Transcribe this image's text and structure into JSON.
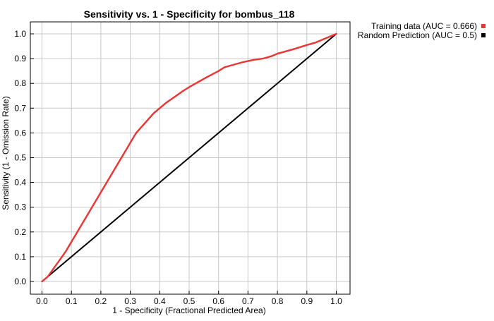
{
  "chart_data": {
    "type": "line",
    "title": "Sensitivity vs. 1 - Specificity for bombus_118",
    "xlabel": "1 - Specificity  (Fractional Predicted Area)",
    "ylabel": "Sensitivity  (1 - Omission Rate)",
    "xlim": [
      0.0,
      1.0
    ],
    "ylim": [
      0.0,
      1.0
    ],
    "x_ticks": [
      "0.0",
      "0.1",
      "0.2",
      "0.3",
      "0.4",
      "0.5",
      "0.6",
      "0.7",
      "0.8",
      "0.9",
      "1.0"
    ],
    "y_ticks": [
      "0.0",
      "0.1",
      "0.2",
      "0.3",
      "0.4",
      "0.5",
      "0.6",
      "0.7",
      "0.8",
      "0.9",
      "1.0"
    ],
    "grid": true,
    "legend_position": "right",
    "series": [
      {
        "name": "Training data (AUC = 0.666)",
        "color": "#ee3333",
        "x": [
          0.0,
          0.02,
          0.05,
          0.08,
          0.1,
          0.12,
          0.15,
          0.18,
          0.2,
          0.22,
          0.25,
          0.28,
          0.3,
          0.32,
          0.35,
          0.38,
          0.4,
          0.42,
          0.45,
          0.48,
          0.5,
          0.53,
          0.56,
          0.6,
          0.62,
          0.65,
          0.68,
          0.7,
          0.72,
          0.75,
          0.78,
          0.8,
          0.83,
          0.86,
          0.9,
          0.93,
          0.96,
          1.0
        ],
        "y": [
          0.0,
          0.02,
          0.07,
          0.12,
          0.16,
          0.2,
          0.26,
          0.32,
          0.36,
          0.4,
          0.46,
          0.52,
          0.56,
          0.6,
          0.64,
          0.68,
          0.7,
          0.72,
          0.745,
          0.77,
          0.785,
          0.805,
          0.825,
          0.85,
          0.865,
          0.875,
          0.885,
          0.89,
          0.895,
          0.9,
          0.91,
          0.92,
          0.93,
          0.94,
          0.955,
          0.965,
          0.98,
          1.0
        ]
      },
      {
        "name": "Random Prediction (AUC = 0.5)",
        "color": "#000000",
        "x": [
          0.0,
          1.0
        ],
        "y": [
          0.0,
          1.0
        ]
      }
    ]
  }
}
